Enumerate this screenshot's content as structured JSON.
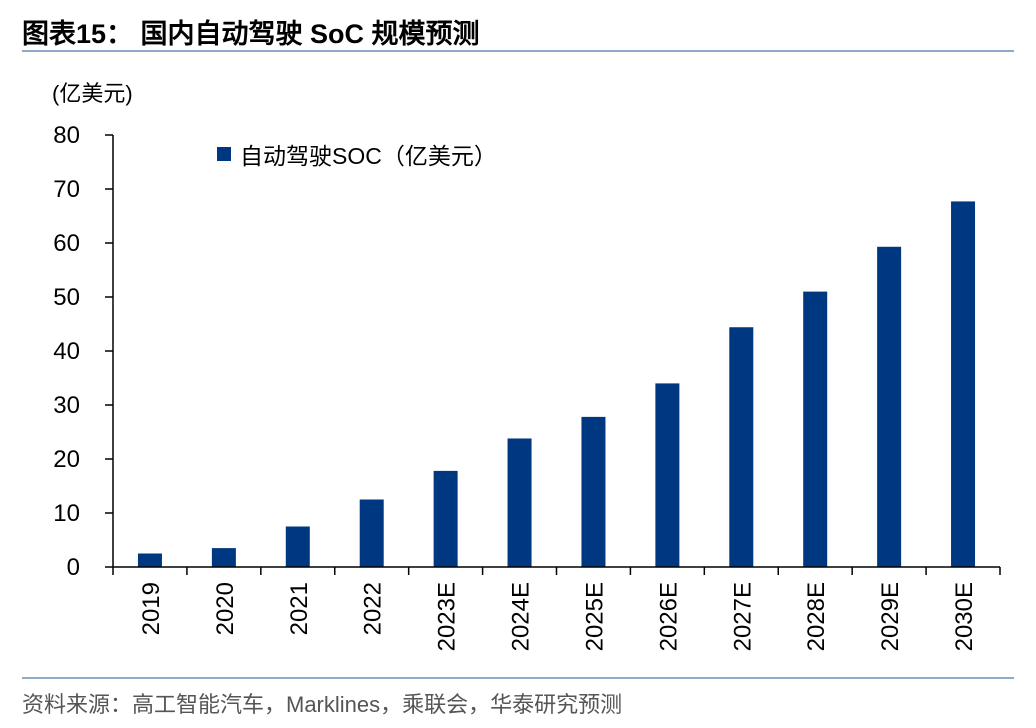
{
  "title": "图表15：  国内自动驾驶 SoC 规模预测",
  "source": "资料来源：高工智能汽车，Marklines，乘联会，华泰研究预测",
  "chart_data": {
    "type": "bar",
    "unit_label": "(亿美元)",
    "categories": [
      "2019",
      "2020",
      "2021",
      "2022",
      "2023E",
      "2024E",
      "2025E",
      "2026E",
      "2027E",
      "2028E",
      "2029E",
      "2030E"
    ],
    "series": [
      {
        "name": "自动驾驶SOC（亿美元）",
        "values": [
          2.5,
          3.5,
          7.5,
          12.5,
          17.8,
          23.8,
          27.8,
          34.0,
          44.4,
          51.0,
          59.3,
          67.7
        ]
      }
    ],
    "ylim": [
      0,
      80
    ],
    "yticks": [
      0,
      10,
      20,
      30,
      40,
      50,
      60,
      70,
      80
    ],
    "bar_color": "#003781",
    "legend_position": "top-left"
  }
}
